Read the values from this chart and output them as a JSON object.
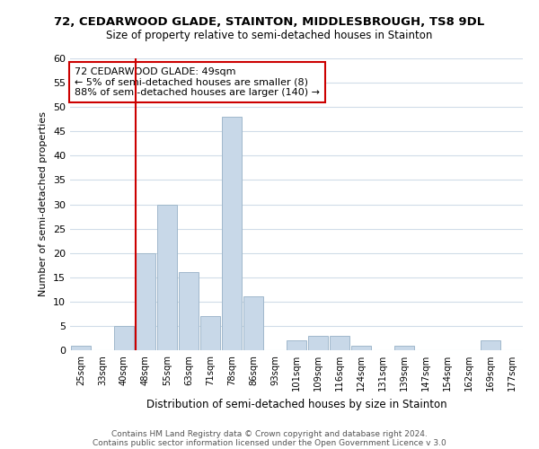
{
  "title": "72, CEDARWOOD GLADE, STAINTON, MIDDLESBROUGH, TS8 9DL",
  "subtitle": "Size of property relative to semi-detached houses in Stainton",
  "xlabel": "Distribution of semi-detached houses by size in Stainton",
  "ylabel": "Number of semi-detached properties",
  "footer1": "Contains HM Land Registry data © Crown copyright and database right 2024.",
  "footer2": "Contains public sector information licensed under the Open Government Licence v 3.0",
  "bin_labels": [
    "25sqm",
    "33sqm",
    "40sqm",
    "48sqm",
    "55sqm",
    "63sqm",
    "71sqm",
    "78sqm",
    "86sqm",
    "93sqm",
    "101sqm",
    "109sqm",
    "116sqm",
    "124sqm",
    "131sqm",
    "139sqm",
    "147sqm",
    "154sqm",
    "162sqm",
    "169sqm",
    "177sqm"
  ],
  "bin_values": [
    1,
    0,
    5,
    20,
    30,
    16,
    7,
    48,
    11,
    0,
    2,
    3,
    3,
    1,
    0,
    1,
    0,
    0,
    0,
    2,
    0
  ],
  "bar_color": "#c8d8e8",
  "bar_edge_color": "#a0b8cc",
  "vline_x_index": 3,
  "vline_color": "#cc0000",
  "annotation_line1": "72 CEDARWOOD GLADE: 49sqm",
  "annotation_line2": "← 5% of semi-detached houses are smaller (8)",
  "annotation_line3": "88% of semi-detached houses are larger (140) →",
  "annotation_box_color": "#ffffff",
  "annotation_box_edge_color": "#cc0000",
  "ylim": [
    0,
    60
  ],
  "yticks": [
    0,
    5,
    10,
    15,
    20,
    25,
    30,
    35,
    40,
    45,
    50,
    55,
    60
  ],
  "background_color": "#ffffff",
  "grid_color": "#d0dce8"
}
